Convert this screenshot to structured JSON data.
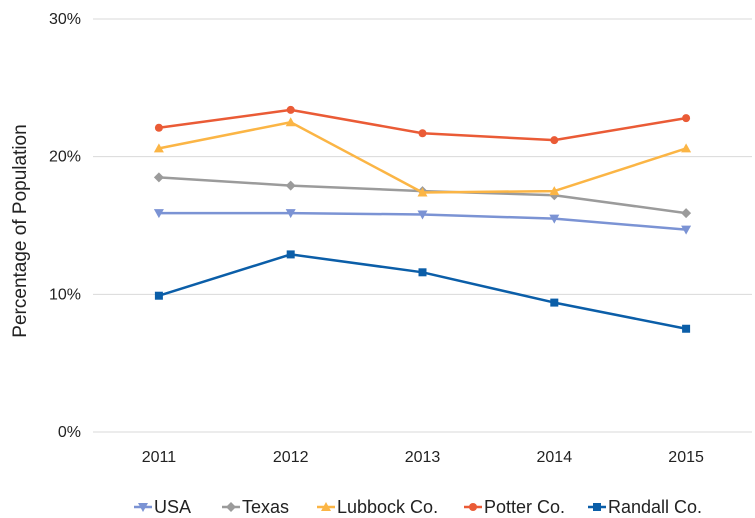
{
  "chart_data": {
    "type": "line",
    "title": "",
    "xlabel": "",
    "ylabel": "Percentage of Population",
    "categories": [
      "2011",
      "2012",
      "2013",
      "2014",
      "2015"
    ],
    "ylim": [
      0,
      30
    ],
    "yticks": [
      {
        "value": 0,
        "label": "0%"
      },
      {
        "value": 10,
        "label": "10%"
      },
      {
        "value": 20,
        "label": "20%"
      },
      {
        "value": 30,
        "label": "30%"
      }
    ],
    "grid": true,
    "legend_position": "bottom",
    "series": [
      {
        "name": "USA",
        "color": "#7b93d4",
        "marker": "triangle-down",
        "values": [
          15.9,
          15.9,
          15.8,
          15.5,
          14.7
        ]
      },
      {
        "name": "Texas",
        "color": "#9b9b9b",
        "marker": "diamond",
        "values": [
          18.5,
          17.9,
          17.5,
          17.2,
          15.9
        ]
      },
      {
        "name": "Lubbock Co.",
        "color": "#fbb545",
        "marker": "triangle-up",
        "values": [
          20.6,
          22.5,
          17.4,
          17.5,
          20.6
        ]
      },
      {
        "name": "Potter Co.",
        "color": "#ea5b36",
        "marker": "circle",
        "values": [
          22.1,
          23.4,
          21.7,
          21.2,
          22.8
        ]
      },
      {
        "name": "Randall Co.",
        "color": "#0b5ea8",
        "marker": "square",
        "values": [
          9.9,
          12.9,
          11.6,
          9.4,
          7.5
        ]
      }
    ]
  }
}
